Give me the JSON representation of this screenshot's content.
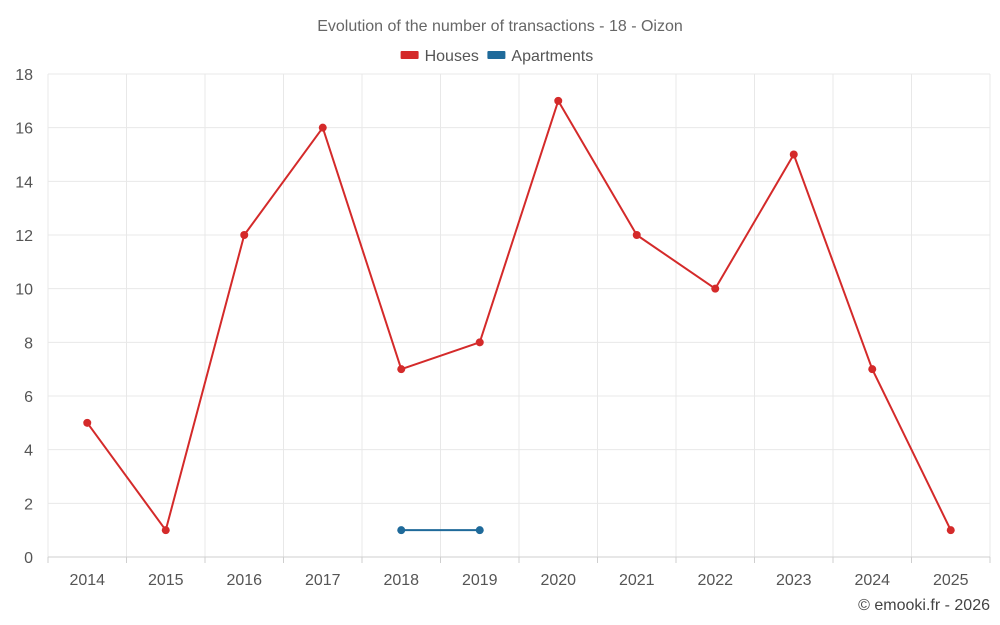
{
  "chart_data": {
    "type": "line",
    "title": "Evolution of the number of transactions - 18 - Oizon",
    "categories": [
      "2014",
      "2015",
      "2016",
      "2017",
      "2018",
      "2019",
      "2020",
      "2021",
      "2022",
      "2023",
      "2024",
      "2025"
    ],
    "ylim": [
      0,
      18
    ],
    "yticks": [
      0,
      2,
      4,
      6,
      8,
      10,
      12,
      14,
      16,
      18
    ],
    "grid": true,
    "legend_position": "top-center",
    "series": [
      {
        "name": "Houses",
        "color": "#d42a2a",
        "values": [
          5,
          1,
          12,
          16,
          7,
          8,
          17,
          12,
          10,
          15,
          7,
          1
        ]
      },
      {
        "name": "Apartments",
        "color": "#1f6a9a",
        "values": [
          null,
          null,
          null,
          null,
          1,
          1,
          null,
          null,
          null,
          null,
          null,
          null
        ]
      }
    ],
    "xlabel": "",
    "ylabel": ""
  },
  "credit": "© emooki.fr - 2026"
}
